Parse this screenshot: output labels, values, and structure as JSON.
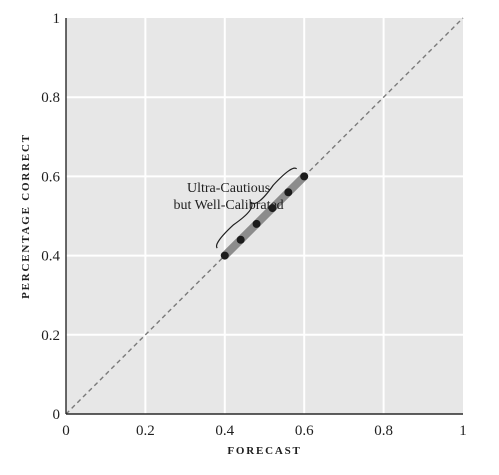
{
  "chart_data": {
    "type": "line",
    "xlabel": "FORECAST",
    "ylabel": "PERCENTAGE CORRECT",
    "xlim": [
      0,
      1
    ],
    "ylim": [
      0,
      1
    ],
    "xticks": [
      0,
      0.2,
      0.4,
      0.6,
      0.8,
      1
    ],
    "yticks": [
      0,
      0.2,
      0.4,
      0.6,
      0.8,
      1
    ],
    "x_tick_labels": [
      "0",
      "0.2",
      "0.4",
      "0.6",
      "0.8",
      "1"
    ],
    "y_tick_labels": [
      "0",
      "0.2",
      "0.4",
      "0.6",
      "0.8",
      "1"
    ],
    "grid": true,
    "reference_line": {
      "style": "dashed",
      "x": [
        0,
        1
      ],
      "y": [
        0,
        1
      ],
      "color": "#7a7a7a"
    },
    "series": [
      {
        "x": [
          0.4,
          0.44,
          0.48,
          0.52,
          0.56,
          0.6
        ],
        "y": [
          0.4,
          0.44,
          0.48,
          0.52,
          0.56,
          0.6
        ],
        "line_color": "#8c8c8c",
        "marker_color": "#1c1c1c"
      }
    ],
    "annotations": [
      {
        "lines": [
          "Ultra-Cautious",
          "but Well-Calibrated"
        ]
      }
    ],
    "colors": {
      "plot_background": "#e7e7e7",
      "grid": "#ffffff",
      "axis": "#2a2a2a",
      "text": "#1f1f1f"
    }
  }
}
